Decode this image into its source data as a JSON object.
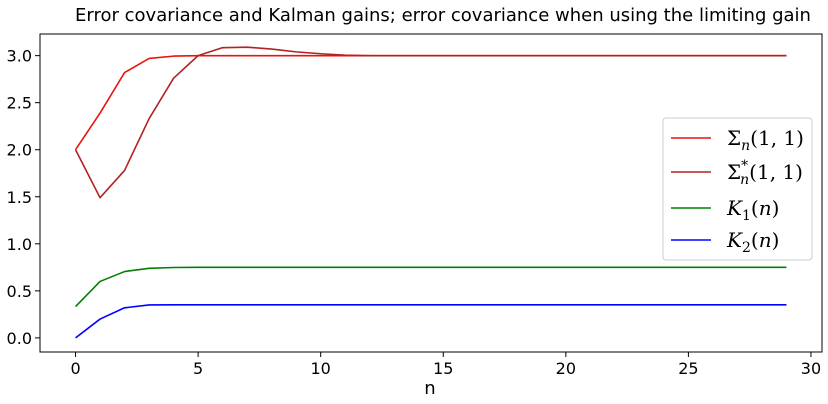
{
  "chart_data": {
    "type": "line",
    "title": "Error covariance and Kalman gains; error covariance when using the limiting gain",
    "xlabel": "n",
    "ylabel": "",
    "xlim": [
      -1.45,
      30.45
    ],
    "ylim": [
      -0.15,
      3.23
    ],
    "xticks": [
      0,
      5,
      10,
      15,
      20,
      25,
      30
    ],
    "xtick_labels": [
      "0",
      "5",
      "10",
      "15",
      "20",
      "25",
      "30"
    ],
    "yticks": [
      0.0,
      0.5,
      1.0,
      1.5,
      2.0,
      2.5,
      3.0
    ],
    "ytick_labels": [
      "0.0",
      "0.5",
      "1.0",
      "1.5",
      "2.0",
      "2.5",
      "3.0"
    ],
    "grid": false,
    "legend_position": "center-right",
    "x": [
      0,
      1,
      2,
      3,
      4,
      5,
      6,
      7,
      8,
      9,
      10,
      11,
      12,
      13,
      14,
      15,
      16,
      17,
      18,
      19,
      20,
      21,
      22,
      23,
      24,
      25,
      26,
      27,
      28,
      29
    ],
    "series": [
      {
        "name": "Σn(1, 1)",
        "legend_main": "Σ",
        "legend_sub": "n",
        "legend_sup": "",
        "legend_args": "(1, 1)",
        "color": "#e8140f",
        "values": [
          2.0,
          2.39,
          2.82,
          2.97,
          2.995,
          3.0,
          3.0,
          3.0,
          3.0,
          3.0,
          3.0,
          3.0,
          3.0,
          3.0,
          3.0,
          3.0,
          3.0,
          3.0,
          3.0,
          3.0,
          3.0,
          3.0,
          3.0,
          3.0,
          3.0,
          3.0,
          3.0,
          3.0,
          3.0,
          3.0
        ]
      },
      {
        "name": "Σ*n(1, 1)",
        "legend_main": "Σ",
        "legend_sub": "n",
        "legend_sup": "*",
        "legend_args": "(1, 1)",
        "color": "#b22222",
        "values": [
          2.0,
          1.49,
          1.78,
          2.33,
          2.76,
          3.0,
          3.085,
          3.09,
          3.07,
          3.04,
          3.02,
          3.005,
          3.0,
          3.0,
          3.0,
          3.0,
          3.0,
          3.0,
          3.0,
          3.0,
          3.0,
          3.0,
          3.0,
          3.0,
          3.0,
          3.0,
          3.0,
          3.0,
          3.0,
          3.0
        ]
      },
      {
        "name": "K1(n)",
        "legend_main": "K",
        "legend_sub": "1",
        "legend_sup": "",
        "legend_args": "(n)",
        "color": "#008000",
        "values": [
          0.333,
          0.6,
          0.705,
          0.74,
          0.748,
          0.75,
          0.75,
          0.75,
          0.75,
          0.75,
          0.75,
          0.75,
          0.75,
          0.75,
          0.75,
          0.75,
          0.75,
          0.75,
          0.75,
          0.75,
          0.75,
          0.75,
          0.75,
          0.75,
          0.75,
          0.75,
          0.75,
          0.75,
          0.75,
          0.75
        ]
      },
      {
        "name": "K2(n)",
        "legend_main": "K",
        "legend_sub": "2",
        "legend_sup": "",
        "legend_args": "(n)",
        "color": "#0000ff",
        "values": [
          0.0,
          0.2,
          0.32,
          0.35,
          0.352,
          0.352,
          0.352,
          0.352,
          0.352,
          0.352,
          0.352,
          0.352,
          0.352,
          0.352,
          0.352,
          0.352,
          0.352,
          0.352,
          0.352,
          0.352,
          0.352,
          0.352,
          0.352,
          0.352,
          0.352,
          0.352,
          0.352,
          0.352,
          0.352,
          0.352
        ]
      }
    ]
  }
}
